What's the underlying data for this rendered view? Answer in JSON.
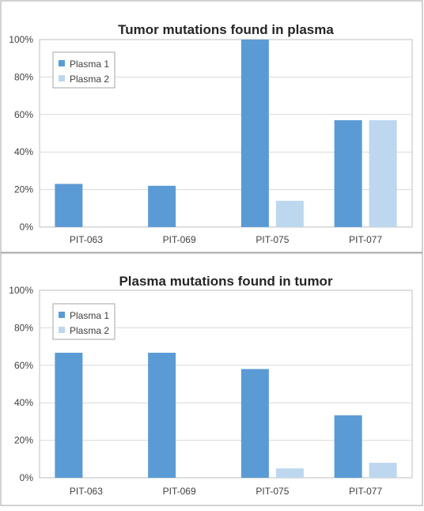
{
  "chart_data": [
    {
      "type": "bar",
      "title": "Tumor mutations found in plasma",
      "categories": [
        "PIT-063",
        "PIT-069",
        "PIT-075",
        "PIT-077"
      ],
      "series": [
        {
          "name": "Plasma 1",
          "values": [
            23,
            22,
            100,
            57
          ],
          "color": "#5b9bd5"
        },
        {
          "name": "Plasma 2",
          "values": [
            null,
            null,
            14,
            57
          ],
          "color": "#bdd7ee"
        }
      ],
      "yticks": [
        "0%",
        "20%",
        "40%",
        "60%",
        "80%",
        "100%"
      ],
      "ylim": [
        0,
        100
      ],
      "grid": true,
      "legend": "top-left"
    },
    {
      "type": "bar",
      "title": "Plasma mutations found in tumor",
      "categories": [
        "PIT-063",
        "PIT-069",
        "PIT-075",
        "PIT-077"
      ],
      "series": [
        {
          "name": "Plasma 1",
          "values": [
            66.7,
            66.7,
            58,
            33.3
          ],
          "color": "#5b9bd5"
        },
        {
          "name": "Plasma 2",
          "values": [
            null,
            null,
            5,
            8
          ],
          "color": "#bdd7ee"
        }
      ],
      "yticks": [
        "0%",
        "20%",
        "40%",
        "60%",
        "80%",
        "100%"
      ],
      "ylim": [
        0,
        100
      ],
      "grid": true,
      "legend": "top-left"
    }
  ]
}
